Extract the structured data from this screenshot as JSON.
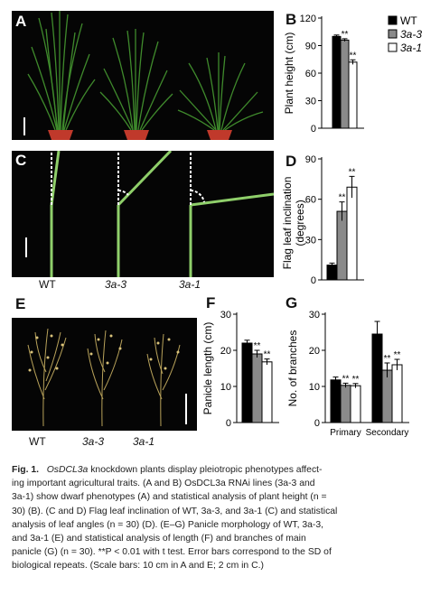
{
  "panels": {
    "a": "A",
    "b": "B",
    "c": "C",
    "d": "D",
    "e": "E",
    "f": "F",
    "g": "G"
  },
  "genotypes": {
    "wt": "WT",
    "l33": "3a-3",
    "l31": "3a-1"
  },
  "legend": [
    "WT",
    "3a-3",
    "3a-1"
  ],
  "colors": {
    "wt": "#000000",
    "l33": "#8a8a8a",
    "l31": "#ffffff",
    "photo_bg": "#050505",
    "plant_green": "#3f8a2c"
  },
  "significance_mark": "**",
  "chart_data": [
    {
      "panel": "B",
      "type": "bar",
      "ylabel": "Plant height (cm)",
      "ylim": [
        0,
        120
      ],
      "yticks": [
        "0",
        "30",
        "60",
        "90",
        "120"
      ],
      "series": [
        {
          "name": "WT",
          "values": [
            100
          ],
          "errors": [
            1.5
          ],
          "sig": ""
        },
        {
          "name": "3a-3",
          "values": [
            96
          ],
          "errors": [
            1.5
          ],
          "sig": "**"
        },
        {
          "name": "3a-1",
          "values": [
            72
          ],
          "errors": [
            2.5
          ],
          "sig": "**"
        }
      ]
    },
    {
      "panel": "D",
      "type": "bar",
      "ylabel": "Flag leaf inclination (degrees)",
      "ylim": [
        0,
        90
      ],
      "yticks": [
        "0",
        "30",
        "60",
        "90"
      ],
      "series": [
        {
          "name": "WT",
          "values": [
            11
          ],
          "errors": [
            1.5
          ],
          "sig": ""
        },
        {
          "name": "3a-3",
          "values": [
            51
          ],
          "errors": [
            7
          ],
          "sig": "**"
        },
        {
          "name": "3a-1",
          "values": [
            69
          ],
          "errors": [
            8
          ],
          "sig": "**"
        }
      ]
    },
    {
      "panel": "F",
      "type": "bar",
      "ylabel": "Panicle length (cm)",
      "ylim": [
        0,
        30
      ],
      "yticks": [
        "0",
        "10",
        "20",
        "30"
      ],
      "series": [
        {
          "name": "WT",
          "values": [
            22
          ],
          "errors": [
            0.8
          ],
          "sig": ""
        },
        {
          "name": "3a-3",
          "values": [
            19
          ],
          "errors": [
            1.0
          ],
          "sig": "**"
        },
        {
          "name": "3a-1",
          "values": [
            16.8
          ],
          "errors": [
            0.8
          ],
          "sig": "**"
        }
      ]
    },
    {
      "panel": "G",
      "type": "bar",
      "ylabel": "No. of branches",
      "ylim": [
        0,
        30
      ],
      "yticks": [
        "0",
        "10",
        "20",
        "30"
      ],
      "categories": [
        "Primary",
        "Secondary"
      ],
      "series": [
        {
          "name": "WT",
          "values": [
            11.8,
            24.5
          ],
          "errors": [
            0.8,
            3.5
          ],
          "sig": [
            "",
            ""
          ]
        },
        {
          "name": "3a-3",
          "values": [
            10.3,
            14.5
          ],
          "errors": [
            0.6,
            2.0
          ],
          "sig": [
            "**",
            "**"
          ]
        },
        {
          "name": "3a-1",
          "values": [
            10.2,
            16.0
          ],
          "errors": [
            0.6,
            1.5
          ],
          "sig": [
            "**",
            "**"
          ]
        }
      ]
    }
  ],
  "caption": {
    "label": "Fig. 1.",
    "gene": "OsDCL3a",
    "text": [
      "knockdown plants display pleiotropic phenotypes affect-",
      "ing important agricultural traits. (A and B) OsDCL3a RNAi lines (3a-3 and",
      "3a-1) show dwarf phenotypes (A) and statistical analysis of plant height (n =",
      "30) (B). (C and D) Flag leaf inclination of WT, 3a-3, and 3a-1 (C) and statistical",
      "analysis of leaf angles (n = 30) (D). (E–G) Panicle morphology of WT, 3a-3,",
      "and 3a-1 (E) and statistical analysis of length (F) and branches of main",
      "panicle (G) (n = 30). **P < 0.01 with t test. Error bars correspond to the SD of",
      "biological repeats. (Scale bars: 10 cm in A and E; 2 cm in C.)"
    ]
  }
}
